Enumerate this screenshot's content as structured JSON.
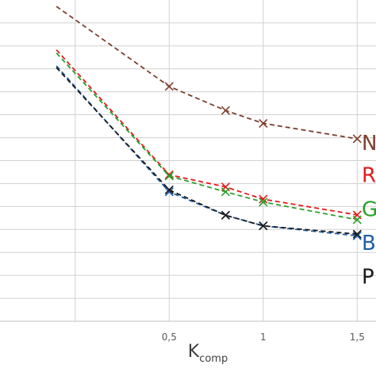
{
  "chart_data": {
    "type": "line",
    "xlabel": "K",
    "xlabel_subscript": "comp",
    "xlim": [
      -0.4,
      1.6
    ],
    "ylim": [
      0,
      1
    ],
    "x_ticks": [
      {
        "value": 0.5,
        "label": "0,5"
      },
      {
        "value": 1,
        "label": "1"
      },
      {
        "value": 1.5,
        "label": "1,5"
      }
    ],
    "x_grid": [
      0,
      0.5,
      1,
      1.5
    ],
    "y_grid": [
      0.0714,
      0.1429,
      0.2143,
      0.2857,
      0.3571,
      0.4286,
      0.5,
      0.5714,
      0.6429,
      0.7143,
      0.7857,
      0.8571,
      0.9286
    ],
    "grid": true,
    "legend_position": "right",
    "series": [
      {
        "name": "N",
        "color": "#7f3f2f",
        "x": [
          -0.1,
          0.5,
          0.8,
          1.0,
          1.5
        ],
        "y": [
          0.98,
          0.731,
          0.656,
          0.616,
          0.568
        ],
        "legend_y": 0.555
      },
      {
        "name": "R",
        "color": "#e41a1c",
        "x": [
          -0.1,
          0.5,
          0.8,
          1.0,
          1.5
        ],
        "y": [
          0.845,
          0.456,
          0.418,
          0.38,
          0.331
        ],
        "legend_y": 0.456
      },
      {
        "name": "Gr",
        "color": "#2ca02c",
        "x": [
          -0.1,
          0.5,
          0.8,
          1.0,
          1.5
        ],
        "y": [
          0.835,
          0.452,
          0.403,
          0.371,
          0.316
        ],
        "legend_y": 0.35
      },
      {
        "name": "B",
        "color": "#1f5fa8",
        "x": [
          -0.1,
          0.5,
          0.8,
          1.0,
          1.5
        ],
        "y": [
          0.795,
          0.403,
          0.33,
          0.297,
          0.266
        ],
        "legend_y": 0.245
      },
      {
        "name": "P",
        "color": "#1a1a1a",
        "x": [
          -0.1,
          0.5,
          0.8,
          1.0,
          1.5
        ],
        "y": [
          0.79,
          0.409,
          0.33,
          0.297,
          0.271
        ],
        "legend_y": 0.14
      }
    ]
  }
}
